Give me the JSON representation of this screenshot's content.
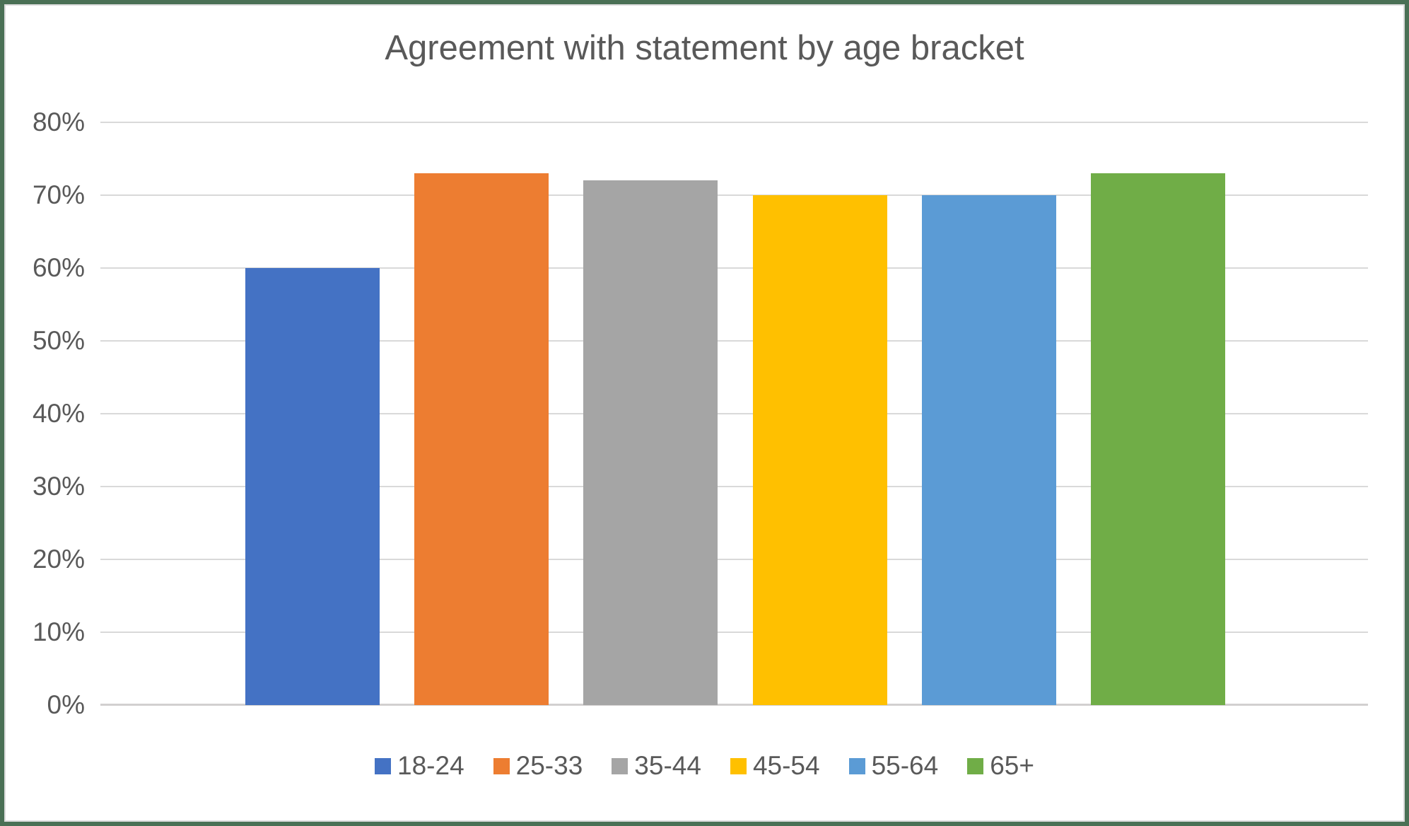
{
  "title": "Agreement with statement by age bracket",
  "chart_data": {
    "type": "bar",
    "title": "Agreement with statement by age bracket",
    "categories": [
      "18-24",
      "25-33",
      "35-44",
      "45-54",
      "55-64",
      "65+"
    ],
    "values": [
      60,
      73,
      72,
      70,
      70,
      73
    ],
    "series_colors": [
      "#4472C4",
      "#ED7D31",
      "#A5A5A5",
      "#FFC000",
      "#5B9BD5",
      "#70AD47"
    ],
    "xlabel": "",
    "ylabel": "",
    "ylim": [
      0,
      80
    ],
    "ytick_step": 10,
    "yticks": [
      "0%",
      "10%",
      "20%",
      "30%",
      "40%",
      "50%",
      "60%",
      "70%",
      "80%"
    ],
    "grid": true,
    "legend_position": "bottom",
    "legend": [
      {
        "label": "18-24",
        "color": "#4472C4"
      },
      {
        "label": "25-33",
        "color": "#ED7D31"
      },
      {
        "label": "35-44",
        "color": "#A5A5A5"
      },
      {
        "label": "45-54",
        "color": "#FFC000"
      },
      {
        "label": "55-64",
        "color": "#5B9BD5"
      },
      {
        "label": "65+",
        "color": "#70AD47"
      }
    ]
  },
  "colors": {
    "text": "#595959",
    "gridline": "#D9D9D9",
    "axis_line": "#D2D0D0",
    "frame_border": "#4A7055",
    "inner_border": "#DBDBDB",
    "background": "#FFFFFF"
  }
}
